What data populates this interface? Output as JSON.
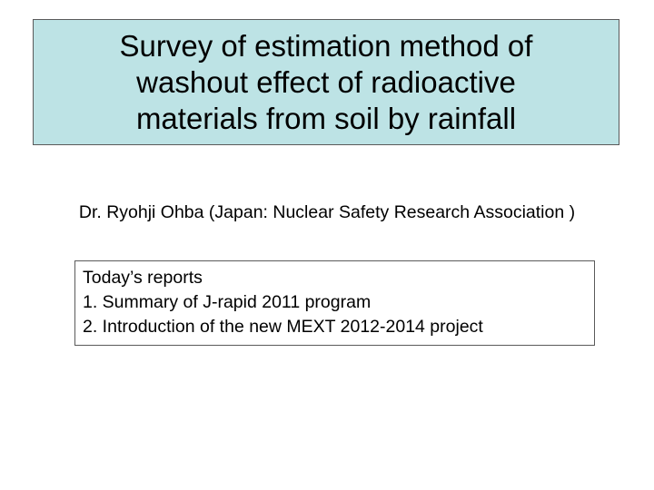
{
  "slide": {
    "title": "Survey of estimation method of\nwashout effect of radioactive\nmaterials from soil by rainfall",
    "author": "Dr. Ryohji Ohba (Japan: Nuclear Safety Research Association )",
    "reports": {
      "heading": "Today’s reports",
      "items": [
        "1. Summary of J-rapid 2011 program",
        "2. Introduction of the new MEXT 2012-2014 project"
      ]
    },
    "colors": {
      "title_background": "#bde3e5",
      "border": "#5a5a5a"
    }
  }
}
